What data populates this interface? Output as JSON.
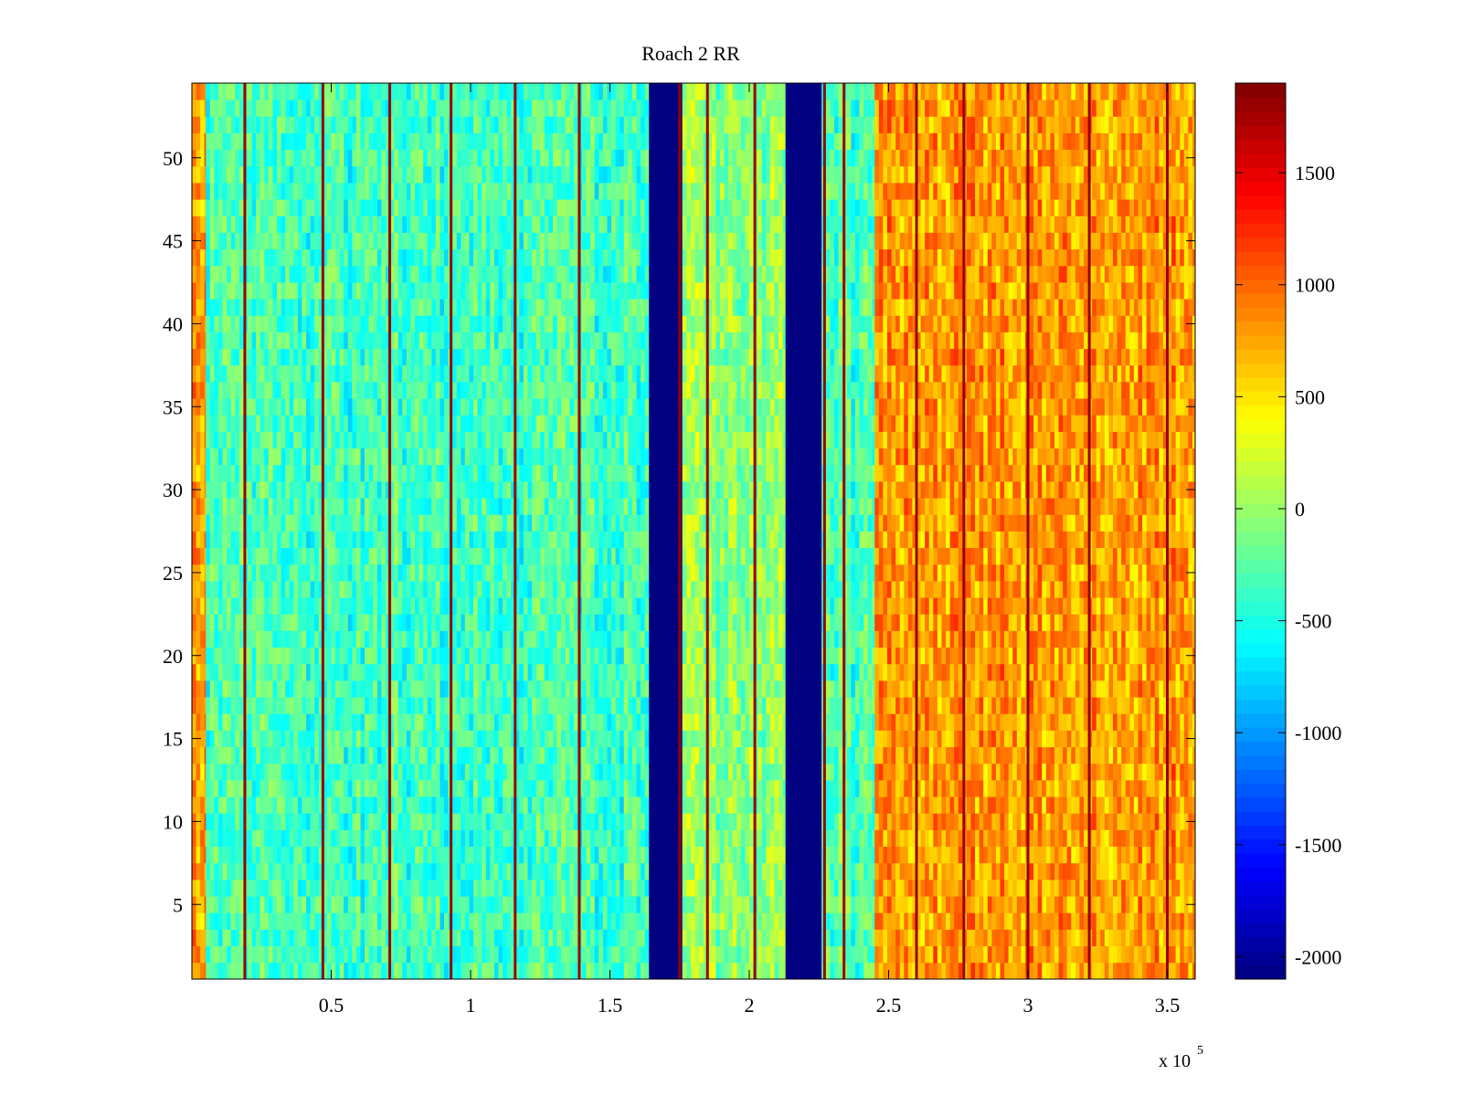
{
  "chart_data": {
    "type": "heatmap",
    "title": "Roach 2 RR",
    "xlabel": "",
    "ylabel": "",
    "x_exponent_label": "x 10",
    "x_exponent": "5",
    "xlim": [
      0,
      360000
    ],
    "ylim": [
      0.5,
      54.5
    ],
    "x_ticks": [
      {
        "value": 50000,
        "label": "0.5"
      },
      {
        "value": 100000,
        "label": "1"
      },
      {
        "value": 150000,
        "label": "1.5"
      },
      {
        "value": 200000,
        "label": "2"
      },
      {
        "value": 250000,
        "label": "2.5"
      },
      {
        "value": 300000,
        "label": "3"
      },
      {
        "value": 350000,
        "label": "3.5"
      }
    ],
    "y_ticks": [
      {
        "value": 5,
        "label": "5"
      },
      {
        "value": 10,
        "label": "10"
      },
      {
        "value": 15,
        "label": "15"
      },
      {
        "value": 20,
        "label": "20"
      },
      {
        "value": 25,
        "label": "25"
      },
      {
        "value": 30,
        "label": "30"
      },
      {
        "value": 35,
        "label": "35"
      },
      {
        "value": 40,
        "label": "40"
      },
      {
        "value": 45,
        "label": "45"
      },
      {
        "value": 50,
        "label": "50"
      }
    ],
    "rows": 54,
    "colormap": "jet",
    "colorbar": {
      "clim": [
        -2100,
        1900
      ],
      "ticks": [
        {
          "value": -2000,
          "label": "-2000"
        },
        {
          "value": -1500,
          "label": "-1500"
        },
        {
          "value": -1000,
          "label": "-1000"
        },
        {
          "value": -500,
          "label": "-500"
        },
        {
          "value": 0,
          "label": "0"
        },
        {
          "value": 500,
          "label": "500"
        },
        {
          "value": 1000,
          "label": "1000"
        },
        {
          "value": 1500,
          "label": "1500"
        }
      ]
    },
    "regions": [
      {
        "x_start": 0,
        "x_end": 5000,
        "mean": 800
      },
      {
        "x_start": 5000,
        "x_end": 164000,
        "mean": -350
      },
      {
        "x_start": 164000,
        "x_end": 176000,
        "mean": -2100
      },
      {
        "x_start": 176000,
        "x_end": 213000,
        "mean": -50
      },
      {
        "x_start": 213000,
        "x_end": 226000,
        "mean": -2100
      },
      {
        "x_start": 226000,
        "x_end": 245000,
        "mean": -300
      },
      {
        "x_start": 245000,
        "x_end": 360000,
        "mean": 800
      }
    ],
    "dark_red_stripes_x": [
      19000,
      47000,
      71000,
      93000,
      116000,
      139000,
      175000,
      185000,
      202000,
      227000,
      234000,
      260000,
      277000,
      300000,
      322000,
      350000
    ],
    "notes_mean_values_are_estimates": true
  }
}
